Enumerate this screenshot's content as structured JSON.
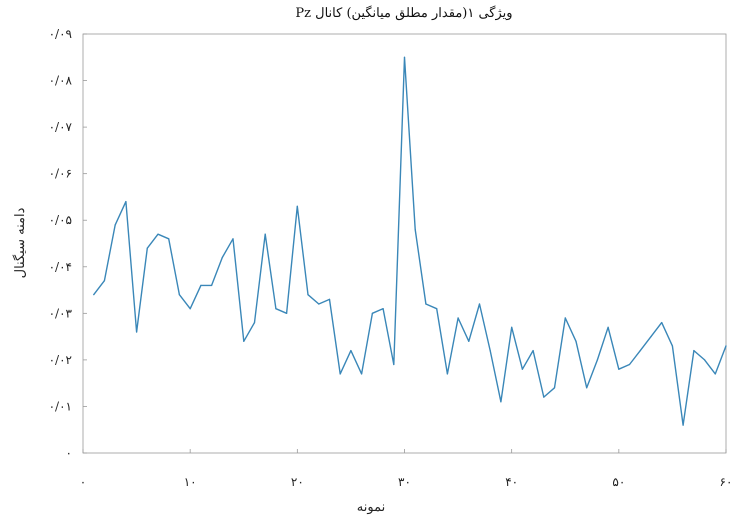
{
  "chart_data": {
    "type": "line",
    "title": "ویژگی ۱(مقدار مطلق میانگین) کانال Pz",
    "xlabel": "نمونه",
    "ylabel": "دامنه سیگنال",
    "xlim": [
      0,
      60
    ],
    "ylim": [
      0,
      0.09
    ],
    "x_ticks": [
      0,
      10,
      20,
      30,
      40,
      50,
      60
    ],
    "x_tick_labels": [
      "۰",
      "۱۰",
      "۲۰",
      "۳۰",
      "۴۰",
      "۵۰",
      "۶۰"
    ],
    "y_ticks": [
      0,
      0.01,
      0.02,
      0.03,
      0.04,
      0.05,
      0.06,
      0.07,
      0.08,
      0.09
    ],
    "y_tick_labels": [
      "۰",
      "۰/۰۱",
      "۰/۰۲",
      "۰/۰۳",
      "۰/۰۴",
      "۰/۰۵",
      "۰/۰۶",
      "۰/۰۷",
      "۰/۰۸",
      "۰/۰۹"
    ],
    "grid": false,
    "series_color": "#3a87b8",
    "x": [
      1,
      2,
      3,
      4,
      5,
      6,
      7,
      8,
      9,
      10,
      11,
      12,
      13,
      14,
      15,
      16,
      17,
      18,
      19,
      20,
      21,
      22,
      23,
      24,
      25,
      26,
      27,
      28,
      29,
      30,
      31,
      32,
      33,
      34,
      35,
      36,
      37,
      38,
      39,
      40,
      41,
      42,
      43,
      44,
      45,
      46,
      47,
      48,
      49,
      50,
      51,
      52,
      53,
      54,
      55,
      56,
      57,
      58,
      59,
      60
    ],
    "y": [
      0.034,
      0.037,
      0.049,
      0.054,
      0.026,
      0.044,
      0.047,
      0.046,
      0.034,
      0.031,
      0.036,
      0.036,
      0.042,
      0.046,
      0.024,
      0.028,
      0.047,
      0.031,
      0.03,
      0.053,
      0.034,
      0.032,
      0.033,
      0.017,
      0.022,
      0.017,
      0.03,
      0.031,
      0.019,
      0.085,
      0.048,
      0.032,
      0.031,
      0.017,
      0.029,
      0.024,
      0.032,
      0.022,
      0.011,
      0.027,
      0.018,
      0.022,
      0.012,
      0.014,
      0.029,
      0.024,
      0.014,
      0.02,
      0.027,
      0.018,
      0.019,
      0.022,
      0.025,
      0.028,
      0.023,
      0.006,
      0.022,
      0.02,
      0.017,
      0.023
    ]
  }
}
